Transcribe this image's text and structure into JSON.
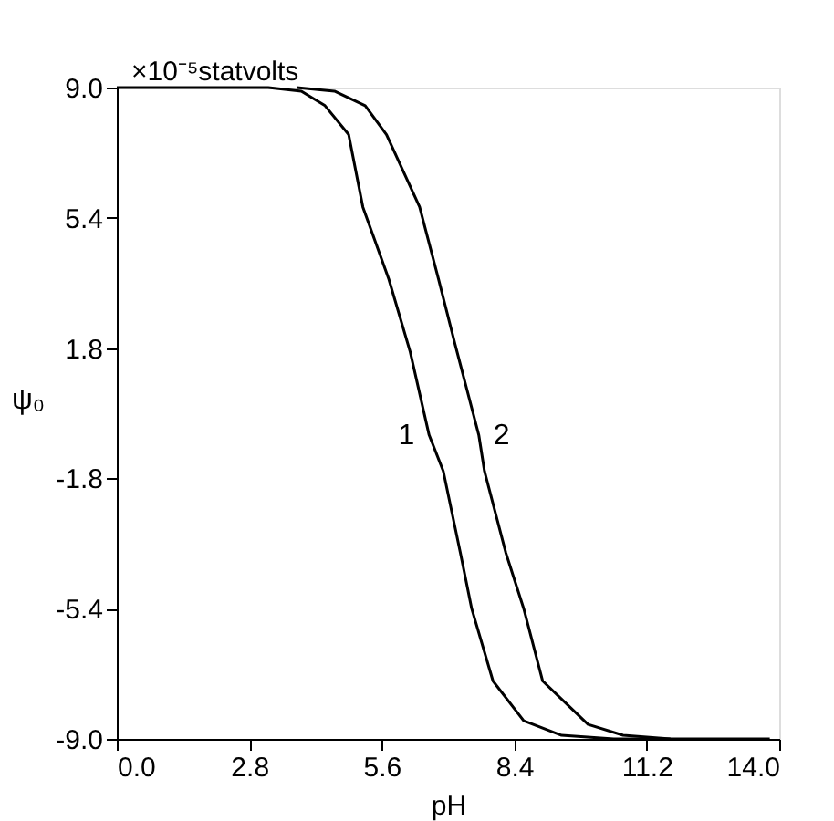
{
  "chart_data": {
    "type": "line",
    "xlabel": "pH",
    "ylabel": "ψ₀",
    "annotations": [
      "×10⁻⁵statvolts"
    ],
    "xlim": [
      0,
      14
    ],
    "xticks": [
      {
        "value": 0,
        "label": "0.0"
      },
      2.8,
      5.6,
      8.4,
      11.2,
      {
        "value": 14,
        "label": "14.0"
      }
    ],
    "ylim": [
      -9,
      9
    ],
    "yticks": [
      {
        "value": -9,
        "label": "-9.0"
      },
      -5.4,
      -1.8,
      1.8,
      5.4,
      {
        "value": 9,
        "label": "9.0"
      }
    ],
    "grid": false,
    "marker": "none",
    "line_style": "solid",
    "series": [
      {
        "name": "1",
        "color": "#000000",
        "x": [
          0,
          2.0,
          3.2,
          3.9,
          4.4,
          4.9,
          5.2,
          5.75,
          6.2,
          6.6,
          6.9,
          7.26,
          7.5,
          7.95,
          8.6,
          9.4,
          10.5,
          13.8
        ],
        "values": [
          9.0,
          9.0,
          9.0,
          8.9,
          8.5,
          7.7,
          5.7,
          3.7,
          1.7,
          -0.6,
          -1.6,
          -3.85,
          -5.4,
          -7.4,
          -8.5,
          -8.9,
          -9.0,
          -9.0
        ]
      },
      {
        "name": "2",
        "color": "#000000",
        "x": [
          3.8,
          4.6,
          5.25,
          5.7,
          6.4,
          6.8,
          7.15,
          7.65,
          7.77,
          8.22,
          8.6,
          9.0,
          9.96,
          10.7,
          11.7
        ],
        "values": [
          9.0,
          8.9,
          8.5,
          7.7,
          5.7,
          3.7,
          1.9,
          -0.6,
          -1.6,
          -3.85,
          -5.4,
          -7.4,
          -8.6,
          -8.9,
          -9.0
        ]
      }
    ]
  }
}
